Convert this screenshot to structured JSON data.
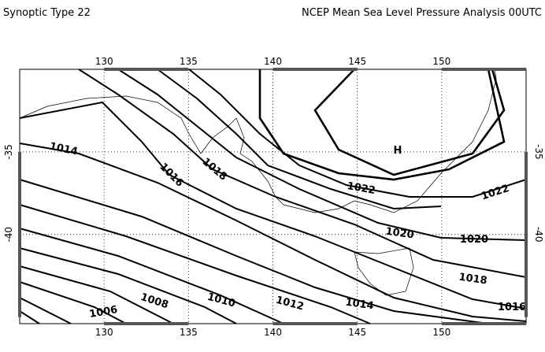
{
  "header": {
    "left_title": "Synoptic Type 22",
    "right_title": "NCEP Mean Sea Level Pressure Analysis 00UTC"
  },
  "map": {
    "lon_range": [
      125,
      155
    ],
    "lat_range": [
      -45.4,
      -30
    ],
    "lon_ticks": [
      130,
      135,
      140,
      145,
      150
    ],
    "lat_ticks": [
      -35,
      -40
    ],
    "contour_labels": [
      1014,
      1016,
      1018,
      1022,
      1022,
      1020,
      1020,
      1018,
      1016,
      1006,
      1008,
      1010,
      1012,
      1014
    ],
    "high_label": "H"
  }
}
